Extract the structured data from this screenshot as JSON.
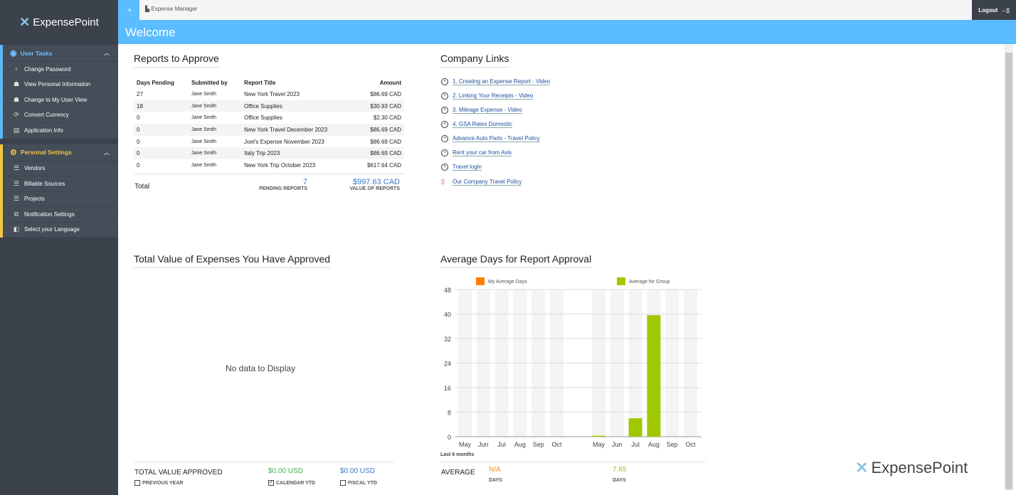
{
  "app": {
    "brand": "ExpensePoint",
    "breadcrumb": "Expense Manager",
    "logout": "Logout",
    "page_title": "Welcome"
  },
  "sidebar": {
    "user_tasks": {
      "title": "User Tasks",
      "items": [
        {
          "label": "Change Password",
          "icon": "key-icon"
        },
        {
          "label": "View Personal Information",
          "icon": "user-card-icon"
        },
        {
          "label": "Change to My User View",
          "icon": "users-icon"
        },
        {
          "label": "Convert Currency",
          "icon": "currency-icon"
        },
        {
          "label": "Application Info",
          "icon": "info-panel-icon"
        }
      ]
    },
    "personal_settings": {
      "title": "Personal Settings",
      "items": [
        {
          "label": "Vendors",
          "icon": "list-icon"
        },
        {
          "label": "Billable Sources",
          "icon": "list-icon"
        },
        {
          "label": "Projects",
          "icon": "list-icon"
        },
        {
          "label": "Notification Settings",
          "icon": "notification-icon"
        },
        {
          "label": "Select your Language",
          "icon": "language-icon"
        }
      ]
    }
  },
  "reports": {
    "title": "Reports to Approve",
    "headers": [
      "Days Pending",
      "Submitted by",
      "Report Title",
      "Amount"
    ],
    "rows": [
      [
        "27",
        "Jane Smith",
        "New York Travel 2023",
        "$86.69 CAD"
      ],
      [
        "18",
        "Jane Smith",
        "Office Supplies",
        "$30.93 CAD"
      ],
      [
        "0",
        "Jane Smith",
        "Office Supplies",
        "$2.30 CAD"
      ],
      [
        "0",
        "Jane Smith",
        "New York Travel December 2023",
        "$86.69 CAD"
      ],
      [
        "0",
        "Jane Smith",
        "Joel's Expense November 2023",
        "$86.69 CAD"
      ],
      [
        "0",
        "Jane Smith",
        "Italy Trip 2023",
        "$86.69 CAD"
      ],
      [
        "0",
        "Jane Smith",
        "New York Trip October 2023",
        "$617.64 CAD"
      ]
    ],
    "total_label": "Total",
    "pending_count": "7",
    "pending_label": "PENDING REPORTS",
    "total_value": "$997.63 CAD",
    "value_label": "VALUE OF REPORTS"
  },
  "links": {
    "title": "Company Links",
    "items": [
      {
        "label": "1. Creating an Expense Report - Video",
        "icon": "globe-icon"
      },
      {
        "label": "2. Linking Your Receipts - Video",
        "icon": "globe-icon"
      },
      {
        "label": "3. Mileage Expense - Video",
        "icon": "globe-icon"
      },
      {
        "label": "4. GSA Rates Domestic",
        "icon": "globe-icon"
      },
      {
        "label": "Advance Auto Parts - Travel Policy",
        "icon": "globe-icon"
      },
      {
        "label": "Rent your car from Avis",
        "icon": "globe-icon"
      },
      {
        "label": "Travel login",
        "icon": "globe-icon"
      },
      {
        "label": "Our Company Travel Policy",
        "icon": "pdf-icon"
      }
    ]
  },
  "approved": {
    "title": "Total Value of Expenses You Have Approved",
    "no_data": "No data to Display",
    "total_label": "TOTAL VALUE APPROVED",
    "calendar_value": "$0.00 USD",
    "fiscal_value": "$0.00 USD",
    "options": [
      {
        "label": "PREVIOUS YEAR",
        "checked": false
      },
      {
        "label": "CALENDAR YTD",
        "checked": true
      },
      {
        "label": "FISCAL YTD",
        "checked": false
      }
    ]
  },
  "chart_data": {
    "type": "bar",
    "title": "Average Days for Report Approval",
    "categories": [
      "May",
      "Jun",
      "Jul",
      "Aug",
      "Sep",
      "Oct"
    ],
    "series": [
      {
        "name": "My Average Days",
        "color": "#ff7f00",
        "values": [
          0,
          0,
          0,
          0,
          0,
          0
        ]
      },
      {
        "name": "Average for Group",
        "color": "#a0c800",
        "values": [
          0.3,
          0,
          6,
          39.6,
          0,
          0
        ]
      }
    ],
    "yticks": [
      "0",
      "8",
      "16",
      "24",
      "32",
      "40",
      "48"
    ],
    "ylim": [
      0,
      48
    ],
    "xlabel": "Last 6 months",
    "average_label": "AVERAGE",
    "my_average": "N/A",
    "group_average": "7.65",
    "days_label": "DAYS"
  }
}
